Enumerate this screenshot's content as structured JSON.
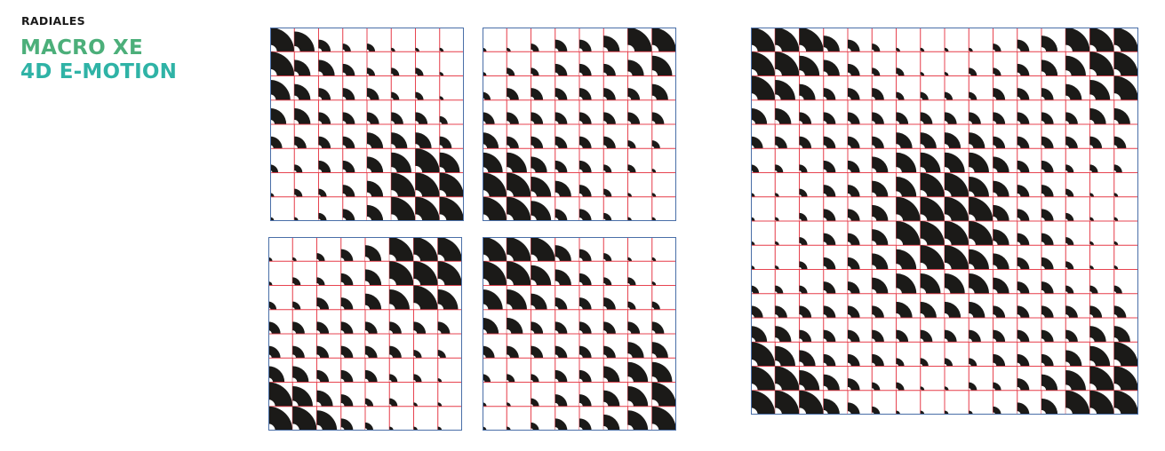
{
  "header": {
    "kicker": "RADIALES",
    "title_line1": "MACRO XE",
    "title_line2": "4D E-MOTION"
  },
  "colors": {
    "title_green": "#4caf7a",
    "title_teal": "#2fb3a6",
    "shape": "#1b1a18",
    "cell_grid": "#e63c4a",
    "frame": "#4a6fa8"
  },
  "motif": "quarter-circle radial pattern, size varies per cell",
  "panels": {
    "top_left": {
      "sizes": [
        [
          6,
          5,
          3,
          2,
          2,
          1,
          1,
          1
        ],
        [
          6,
          4,
          4,
          3,
          2,
          2,
          2,
          1
        ],
        [
          5,
          4,
          3,
          3,
          3,
          2,
          2,
          1
        ],
        [
          4,
          4,
          3,
          3,
          3,
          3,
          3,
          2
        ],
        [
          3,
          3,
          3,
          3,
          4,
          4,
          4,
          3
        ],
        [
          2,
          2,
          3,
          3,
          4,
          5,
          6,
          5
        ],
        [
          1,
          2,
          2,
          3,
          4,
          6,
          6,
          6
        ],
        [
          1,
          1,
          2,
          3,
          4,
          6,
          6,
          6
        ]
      ]
    },
    "top_right": {
      "sizes": [
        [
          1,
          1,
          2,
          3,
          3,
          4,
          6,
          6
        ],
        [
          1,
          2,
          2,
          3,
          3,
          3,
          4,
          5
        ],
        [
          2,
          3,
          3,
          3,
          3,
          3,
          3,
          4
        ],
        [
          3,
          3,
          3,
          3,
          3,
          3,
          3,
          3
        ],
        [
          4,
          3,
          3,
          3,
          3,
          3,
          2,
          2
        ],
        [
          5,
          5,
          4,
          3,
          3,
          2,
          2,
          1
        ],
        [
          6,
          6,
          5,
          4,
          3,
          2,
          1,
          1
        ],
        [
          6,
          6,
          5,
          3,
          3,
          2,
          1,
          1
        ]
      ]
    },
    "bottom_left": {
      "sizes": [
        [
          1,
          1,
          2,
          3,
          4,
          6,
          6,
          6
        ],
        [
          1,
          2,
          2,
          3,
          4,
          6,
          6,
          6
        ],
        [
          2,
          2,
          3,
          3,
          4,
          5,
          6,
          5
        ],
        [
          3,
          3,
          3,
          3,
          3,
          3,
          3,
          3
        ],
        [
          3,
          3,
          3,
          3,
          3,
          3,
          2,
          2
        ],
        [
          4,
          4,
          3,
          3,
          3,
          2,
          2,
          1
        ],
        [
          6,
          5,
          4,
          3,
          2,
          2,
          1,
          1
        ],
        [
          6,
          6,
          5,
          3,
          2,
          1,
          1,
          1
        ]
      ]
    },
    "bottom_right": {
      "sizes": [
        [
          6,
          6,
          6,
          4,
          3,
          2,
          1,
          1
        ],
        [
          6,
          6,
          5,
          4,
          3,
          2,
          2,
          1
        ],
        [
          5,
          5,
          4,
          3,
          3,
          3,
          2,
          2
        ],
        [
          4,
          4,
          3,
          3,
          3,
          3,
          3,
          3
        ],
        [
          3,
          3,
          3,
          3,
          3,
          3,
          4,
          4
        ],
        [
          2,
          2,
          2,
          3,
          3,
          4,
          5,
          5
        ],
        [
          1,
          1,
          2,
          3,
          3,
          4,
          5,
          6
        ],
        [
          1,
          1,
          2,
          3,
          3,
          4,
          5,
          6
        ]
      ]
    },
    "large": {
      "sizes": [
        [
          6,
          6,
          6,
          4,
          3,
          2,
          1,
          1,
          1,
          1,
          2,
          3,
          4,
          6,
          6,
          6
        ],
        [
          6,
          6,
          5,
          4,
          3,
          2,
          2,
          1,
          1,
          2,
          2,
          3,
          4,
          5,
          6,
          6
        ],
        [
          6,
          5,
          4,
          3,
          3,
          3,
          2,
          2,
          2,
          2,
          3,
          3,
          3,
          4,
          5,
          6
        ],
        [
          4,
          4,
          3,
          3,
          3,
          3,
          3,
          3,
          3,
          3,
          3,
          3,
          3,
          3,
          4,
          4
        ],
        [
          3,
          3,
          3,
          3,
          3,
          3,
          4,
          4,
          4,
          4,
          3,
          3,
          3,
          3,
          3,
          3
        ],
        [
          2,
          2,
          2,
          3,
          3,
          4,
          5,
          5,
          5,
          5,
          4,
          3,
          3,
          2,
          2,
          2
        ],
        [
          1,
          1,
          2,
          3,
          3,
          4,
          5,
          6,
          6,
          5,
          4,
          3,
          3,
          2,
          1,
          1
        ],
        [
          1,
          1,
          2,
          3,
          3,
          4,
          6,
          6,
          6,
          6,
          4,
          3,
          3,
          2,
          1,
          1
        ],
        [
          1,
          1,
          2,
          3,
          3,
          4,
          6,
          6,
          6,
          6,
          4,
          3,
          3,
          2,
          1,
          1
        ],
        [
          1,
          1,
          2,
          3,
          3,
          4,
          5,
          6,
          6,
          5,
          4,
          3,
          3,
          2,
          1,
          1
        ],
        [
          2,
          2,
          2,
          3,
          3,
          4,
          5,
          5,
          5,
          5,
          4,
          3,
          3,
          2,
          2,
          2
        ],
        [
          3,
          3,
          3,
          3,
          3,
          3,
          4,
          4,
          4,
          4,
          3,
          3,
          3,
          3,
          3,
          3
        ],
        [
          4,
          4,
          3,
          3,
          3,
          3,
          3,
          3,
          3,
          3,
          3,
          3,
          3,
          3,
          4,
          4
        ],
        [
          6,
          5,
          4,
          3,
          3,
          3,
          2,
          2,
          2,
          2,
          3,
          3,
          3,
          4,
          5,
          6
        ],
        [
          6,
          6,
          5,
          4,
          3,
          2,
          2,
          1,
          1,
          2,
          2,
          3,
          4,
          5,
          6,
          6
        ],
        [
          6,
          6,
          6,
          4,
          3,
          2,
          1,
          1,
          1,
          1,
          2,
          3,
          4,
          6,
          6,
          6
        ]
      ]
    }
  }
}
